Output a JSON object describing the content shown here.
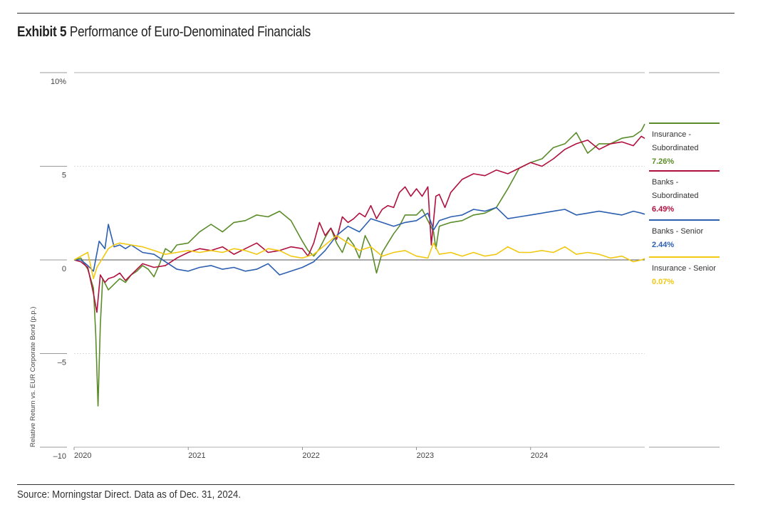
{
  "header": {
    "exhibit_label": "Exhibit 5",
    "title": "Performance of Euro-Denominated Financials"
  },
  "footer": {
    "source": "Source: Morningstar Direct. Data as of Dec. 31, 2024."
  },
  "colors": {
    "insurance_sub": "#5b8c2a",
    "banks_sub": "#b0103e",
    "banks_senior": "#2d5fb0",
    "insurance_senior": "#f2c811",
    "grid": "#cfcfcf",
    "zero": "#555555"
  },
  "chart_data": {
    "type": "line",
    "title": "Performance of Euro-Denominated Financials",
    "xlabel": "",
    "ylabel": "Relative Return vs. EUR Corporate Bond (p.p.)",
    "xlim": [
      2020.0,
      2025.0
    ],
    "ylim": [
      -10,
      10
    ],
    "x_ticks": [
      2020,
      2021,
      2022,
      2023,
      2024
    ],
    "x_tick_labels": [
      "2020",
      "2021",
      "2022",
      "2023",
      "2024"
    ],
    "y_ticks": [
      10,
      5,
      0,
      -5,
      -10
    ],
    "y_tick_labels": [
      "10%",
      "5",
      "0",
      "–5",
      "–10"
    ],
    "grid": true,
    "legend_position": "right",
    "series": [
      {
        "name": "Insurance - Subordinated",
        "legend_lines": [
          "Insurance -",
          "Subordinated"
        ],
        "final_label": "7.26%",
        "color_key": "insurance_sub",
        "x": [
          2020.0,
          2020.06,
          2020.12,
          2020.17,
          2020.19,
          2020.21,
          2020.23,
          2020.25,
          2020.3,
          2020.35,
          2020.4,
          2020.45,
          2020.5,
          2020.55,
          2020.6,
          2020.65,
          2020.7,
          2020.75,
          2020.8,
          2020.85,
          2020.9,
          2021.0,
          2021.1,
          2021.2,
          2021.3,
          2021.4,
          2021.5,
          2021.6,
          2021.7,
          2021.8,
          2021.9,
          2022.0,
          2022.05,
          2022.1,
          2022.15,
          2022.2,
          2022.25,
          2022.3,
          2022.35,
          2022.4,
          2022.45,
          2022.5,
          2022.55,
          2022.6,
          2022.65,
          2022.7,
          2022.75,
          2022.8,
          2022.85,
          2022.9,
          2023.0,
          2023.05,
          2023.1,
          2023.15,
          2023.17,
          2023.2,
          2023.25,
          2023.3,
          2023.4,
          2023.5,
          2023.6,
          2023.7,
          2023.8,
          2023.9,
          2024.0,
          2024.1,
          2024.2,
          2024.3,
          2024.4,
          2024.5,
          2024.6,
          2024.7,
          2024.8,
          2024.9,
          2024.97,
          2025.0
        ],
        "y": [
          0.0,
          0.1,
          -0.5,
          -1.5,
          -4.0,
          -7.8,
          -3.5,
          -1.0,
          -1.6,
          -1.3,
          -1.0,
          -1.2,
          -0.8,
          -0.6,
          -0.3,
          -0.5,
          -0.9,
          -0.2,
          0.6,
          0.4,
          0.8,
          0.9,
          1.5,
          1.9,
          1.5,
          2.0,
          2.1,
          2.4,
          2.3,
          2.6,
          2.1,
          1.0,
          0.5,
          0.2,
          0.6,
          1.2,
          1.7,
          0.9,
          0.4,
          1.2,
          0.8,
          0.1,
          1.3,
          0.7,
          -0.7,
          0.4,
          0.9,
          1.4,
          1.8,
          2.4,
          2.4,
          2.7,
          2.1,
          1.5,
          0.6,
          1.8,
          1.9,
          2.0,
          2.1,
          2.4,
          2.5,
          2.8,
          3.8,
          4.9,
          5.2,
          5.4,
          6.0,
          6.2,
          6.8,
          5.7,
          6.2,
          6.2,
          6.5,
          6.6,
          6.9,
          7.26
        ]
      },
      {
        "name": "Banks - Subordinated",
        "legend_lines": [
          "Banks -",
          "Subordinated"
        ],
        "final_label": "6.49%",
        "color_key": "banks_sub",
        "x": [
          2020.0,
          2020.06,
          2020.12,
          2020.17,
          2020.2,
          2020.23,
          2020.27,
          2020.3,
          2020.35,
          2020.4,
          2020.45,
          2020.5,
          2020.6,
          2020.7,
          2020.8,
          2020.9,
          2021.0,
          2021.1,
          2021.2,
          2021.3,
          2021.4,
          2021.5,
          2021.6,
          2021.7,
          2021.8,
          2021.9,
          2022.0,
          2022.05,
          2022.1,
          2022.15,
          2022.2,
          2022.25,
          2022.3,
          2022.35,
          2022.4,
          2022.45,
          2022.5,
          2022.55,
          2022.6,
          2022.65,
          2022.7,
          2022.75,
          2022.8,
          2022.85,
          2022.9,
          2022.95,
          2023.0,
          2023.05,
          2023.1,
          2023.13,
          2023.17,
          2023.2,
          2023.25,
          2023.3,
          2023.4,
          2023.5,
          2023.6,
          2023.7,
          2023.8,
          2023.9,
          2024.0,
          2024.1,
          2024.2,
          2024.3,
          2024.4,
          2024.5,
          2024.6,
          2024.7,
          2024.8,
          2024.9,
          2024.97,
          2025.0
        ],
        "y": [
          0.0,
          -0.1,
          -0.4,
          -1.8,
          -2.8,
          -0.8,
          -1.2,
          -1.0,
          -0.9,
          -0.7,
          -1.1,
          -0.8,
          -0.2,
          -0.4,
          -0.3,
          0.1,
          0.4,
          0.6,
          0.5,
          0.7,
          0.3,
          0.6,
          0.9,
          0.4,
          0.5,
          0.7,
          0.6,
          0.2,
          0.9,
          2.0,
          1.3,
          1.7,
          1.1,
          2.3,
          2.0,
          2.2,
          2.5,
          2.3,
          2.9,
          2.2,
          2.7,
          2.9,
          2.8,
          3.6,
          3.9,
          3.4,
          3.8,
          3.4,
          3.9,
          0.8,
          3.4,
          3.5,
          2.8,
          3.6,
          4.3,
          4.6,
          4.5,
          4.8,
          4.6,
          4.9,
          5.2,
          5.0,
          5.4,
          5.9,
          6.2,
          6.4,
          5.9,
          6.2,
          6.3,
          6.1,
          6.6,
          6.49
        ]
      },
      {
        "name": "Banks - Senior",
        "legend_lines": [
          "Banks - Senior"
        ],
        "final_label": "2.44%",
        "color_key": "banks_senior",
        "x": [
          2020.0,
          2020.06,
          2020.12,
          2020.17,
          2020.22,
          2020.27,
          2020.3,
          2020.35,
          2020.4,
          2020.45,
          2020.5,
          2020.6,
          2020.7,
          2020.8,
          2020.9,
          2021.0,
          2021.1,
          2021.2,
          2021.3,
          2021.4,
          2021.5,
          2021.6,
          2021.7,
          2021.8,
          2021.9,
          2022.0,
          2022.1,
          2022.2,
          2022.3,
          2022.4,
          2022.5,
          2022.6,
          2022.7,
          2022.8,
          2022.9,
          2023.0,
          2023.1,
          2023.15,
          2023.2,
          2023.3,
          2023.4,
          2023.5,
          2023.6,
          2023.7,
          2023.8,
          2023.9,
          2024.0,
          2024.1,
          2024.2,
          2024.3,
          2024.4,
          2024.5,
          2024.6,
          2024.7,
          2024.8,
          2024.9,
          2024.97,
          2025.0
        ],
        "y": [
          0.0,
          0.0,
          -0.3,
          -0.6,
          1.0,
          0.6,
          1.9,
          0.7,
          0.8,
          0.6,
          0.8,
          0.4,
          0.3,
          -0.1,
          -0.5,
          -0.6,
          -0.4,
          -0.3,
          -0.5,
          -0.4,
          -0.6,
          -0.5,
          -0.2,
          -0.8,
          -0.6,
          -0.4,
          -0.1,
          0.5,
          1.3,
          1.8,
          1.5,
          2.2,
          2.0,
          1.8,
          2.0,
          2.1,
          2.5,
          1.6,
          2.1,
          2.3,
          2.4,
          2.7,
          2.6,
          2.8,
          2.2,
          2.3,
          2.4,
          2.5,
          2.6,
          2.7,
          2.4,
          2.5,
          2.6,
          2.5,
          2.4,
          2.6,
          2.5,
          2.44
        ]
      },
      {
        "name": "Insurance - Senior",
        "legend_lines": [
          "Insurance - Senior"
        ],
        "final_label": "0.07%",
        "color_key": "insurance_senior",
        "x": [
          2020.0,
          2020.06,
          2020.12,
          2020.17,
          2020.2,
          2020.25,
          2020.3,
          2020.35,
          2020.4,
          2020.5,
          2020.6,
          2020.7,
          2020.8,
          2020.9,
          2021.0,
          2021.1,
          2021.2,
          2021.3,
          2021.4,
          2021.5,
          2021.6,
          2021.7,
          2021.8,
          2021.9,
          2022.0,
          2022.1,
          2022.2,
          2022.3,
          2022.4,
          2022.5,
          2022.6,
          2022.7,
          2022.8,
          2022.9,
          2023.0,
          2023.1,
          2023.15,
          2023.2,
          2023.3,
          2023.4,
          2023.5,
          2023.6,
          2023.7,
          2023.8,
          2023.9,
          2024.0,
          2024.1,
          2024.2,
          2024.3,
          2024.4,
          2024.5,
          2024.6,
          2024.7,
          2024.8,
          2024.9,
          2024.97,
          2025.0
        ],
        "y": [
          0.0,
          0.2,
          0.4,
          -1.0,
          -0.4,
          0.1,
          0.6,
          0.8,
          0.9,
          0.8,
          0.7,
          0.5,
          0.3,
          0.4,
          0.5,
          0.4,
          0.5,
          0.4,
          0.6,
          0.5,
          0.3,
          0.6,
          0.5,
          0.2,
          0.1,
          0.3,
          0.8,
          1.3,
          0.9,
          0.5,
          0.7,
          0.2,
          0.4,
          0.5,
          0.2,
          0.1,
          0.9,
          0.3,
          0.4,
          0.2,
          0.4,
          0.2,
          0.3,
          0.7,
          0.4,
          0.4,
          0.5,
          0.4,
          0.7,
          0.3,
          0.4,
          0.3,
          0.1,
          0.2,
          -0.1,
          0.0,
          0.07
        ]
      }
    ]
  }
}
